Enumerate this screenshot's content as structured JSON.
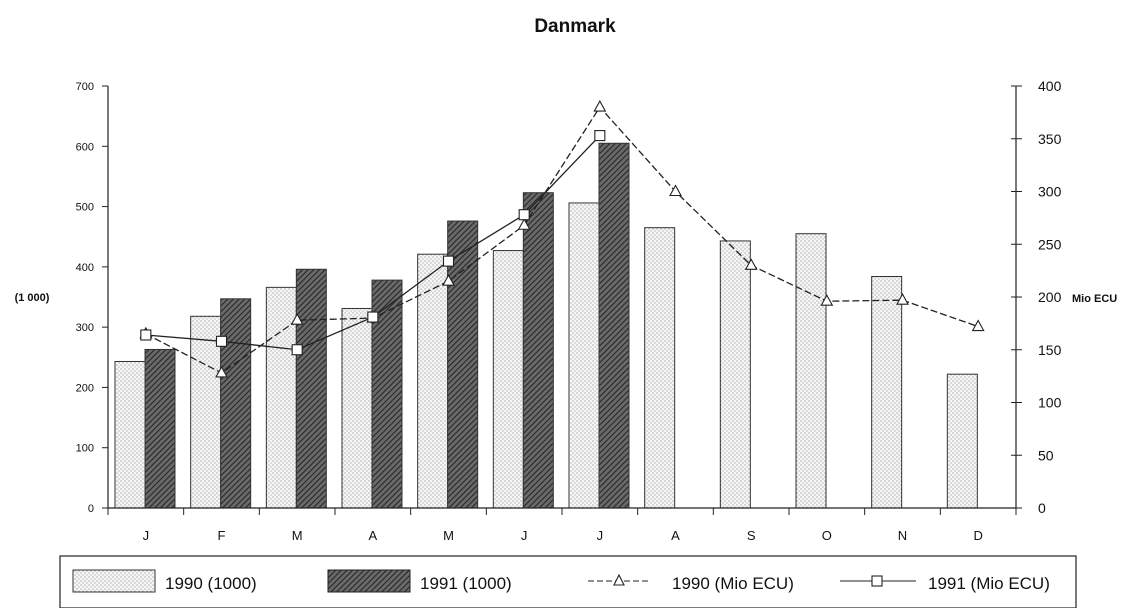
{
  "chart_data": {
    "type": "bar",
    "title": "Danmark",
    "categories": [
      "J",
      "F",
      "M",
      "A",
      "M",
      "J",
      "J",
      "A",
      "S",
      "O",
      "N",
      "D"
    ],
    "ylabel_left": "(1 000)",
    "ylabel_right": "Mio ECU",
    "ylim_left": [
      0,
      700
    ],
    "ylim_right": [
      0,
      400
    ],
    "yticks_left": [
      "0",
      "100",
      "200",
      "300",
      "400",
      "500",
      "600",
      "700"
    ],
    "yticks_right": [
      "0",
      "50",
      "100",
      "150",
      "200",
      "250",
      "300",
      "350",
      "400"
    ],
    "grid": false,
    "legend_position": "bottom",
    "series": [
      {
        "name": "1990 (1000)",
        "type": "bar",
        "axis": "left",
        "values": [
          243,
          318,
          366,
          331,
          421,
          427,
          506,
          465,
          443,
          455,
          384,
          222
        ]
      },
      {
        "name": "1991 (1000)",
        "type": "bar",
        "axis": "left",
        "values": [
          263,
          347,
          396,
          378,
          476,
          523,
          605,
          null,
          null,
          null,
          null,
          null
        ]
      },
      {
        "name": "1990 (Mio ECU)",
        "type": "line",
        "marker": "triangle",
        "axis": "right",
        "values": [
          165,
          128,
          178,
          180,
          215,
          268,
          380,
          300,
          230,
          196,
          197,
          172
        ]
      },
      {
        "name": "1991 (Mio ECU)",
        "type": "line",
        "marker": "square",
        "axis": "right",
        "values": [
          164,
          158,
          150,
          181,
          234,
          278,
          353,
          null,
          null,
          null,
          null,
          null
        ]
      }
    ]
  }
}
